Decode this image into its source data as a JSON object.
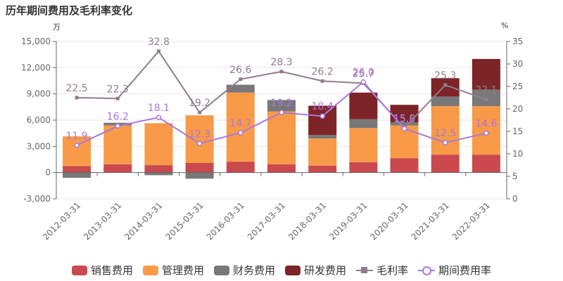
{
  "title": "历年期间费用及毛利率变化",
  "unit_left": "万",
  "unit_right": "%",
  "legend": [
    {
      "label": "销售费用",
      "kind": "rect",
      "color": "#c9494e"
    },
    {
      "label": "管理费用",
      "kind": "rect",
      "color": "#f89a48"
    },
    {
      "label": "财务费用",
      "kind": "rect",
      "color": "#787878"
    },
    {
      "label": "研发费用",
      "kind": "rect",
      "color": "#7c2426"
    },
    {
      "label": "毛利率",
      "kind": "line-square",
      "color": "#8f7d8e"
    },
    {
      "label": "期间费用率",
      "kind": "line-circle",
      "color": "#a877e0"
    }
  ],
  "chart_data": {
    "type": "bar",
    "stacked": true,
    "categories": [
      "2012-03-31",
      "2013-03-31",
      "2014-03-31",
      "2015-03-31",
      "2016-03-31",
      "2017-03-31",
      "2018-03-31",
      "2019-03-31",
      "2020-03-31",
      "2021-03-31",
      "2022-03-31"
    ],
    "y_left": {
      "min": -3000,
      "max": 15000,
      "ticks": [
        "-3,000",
        "0",
        "3,000",
        "6,000",
        "9,000",
        "12,000",
        "15,000"
      ]
    },
    "y_right": {
      "min": 0,
      "max": 35,
      "ticks": [
        "0",
        "5",
        "10",
        "15",
        "20",
        "25",
        "30",
        "35"
      ]
    },
    "series": [
      {
        "name": "销售费用",
        "color": "#c9494e",
        "values": [
          750,
          950,
          850,
          1100,
          1250,
          950,
          800,
          1200,
          1650,
          2050,
          2050
        ]
      },
      {
        "name": "管理费用",
        "color": "#f89a48",
        "values": [
          3400,
          4450,
          4800,
          5450,
          7900,
          6050,
          3100,
          3900,
          3750,
          5550,
          5550
        ]
      },
      {
        "name": "财务费用",
        "color": "#787878",
        "values": [
          -600,
          300,
          -300,
          -700,
          900,
          1300,
          400,
          1000,
          350,
          1100,
          1900
        ]
      },
      {
        "name": "研发费用",
        "color": "#7c2426",
        "values": [
          0,
          0,
          0,
          0,
          0,
          0,
          3350,
          3050,
          2000,
          2100,
          3500
        ]
      }
    ],
    "lines": [
      {
        "name": "毛利率",
        "color": "#8f7d8e",
        "label_color": "#8f7d8e",
        "marker": "square",
        "values": [
          22.5,
          22.3,
          32.8,
          19.2,
          26.6,
          28.3,
          26.2,
          25.7,
          15.8,
          25.3,
          22.1
        ]
      },
      {
        "name": "期间费用率",
        "color": "#a877e0",
        "label_color": "#a877e0",
        "marker": "circle",
        "values": [
          11.9,
          16.2,
          18.1,
          12.3,
          14.7,
          19.2,
          18.4,
          26.0,
          15.6,
          12.5,
          14.6
        ]
      }
    ]
  }
}
